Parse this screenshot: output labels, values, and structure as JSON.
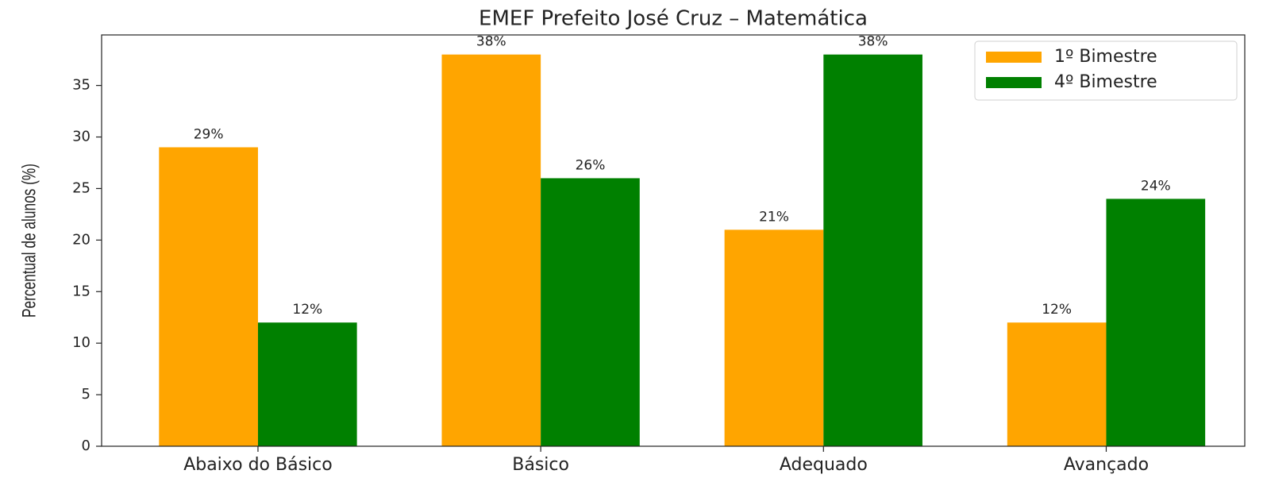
{
  "chart_data": {
    "type": "bar",
    "title": "EMEF Prefeito José Cruz – Matemática",
    "ylabel": "Percentual de alunos (%)",
    "categories": [
      "Abaixo do Básico",
      "Básico",
      "Adequado",
      "Avançado"
    ],
    "series": [
      {
        "name": "1º Bimestre",
        "color": "#ffa500",
        "values": [
          29,
          38,
          21,
          12
        ],
        "value_labels": [
          "29%",
          "38%",
          "21%",
          "12%"
        ]
      },
      {
        "name": "4º Bimestre",
        "color": "#008000",
        "values": [
          12,
          26,
          38,
          24
        ],
        "value_labels": [
          "12%",
          "26%",
          "38%",
          "24%"
        ]
      }
    ],
    "ylim": [
      0,
      39.9
    ],
    "yticks": [
      0,
      5,
      10,
      15,
      20,
      25,
      30,
      35
    ],
    "legend": "upper right"
  }
}
